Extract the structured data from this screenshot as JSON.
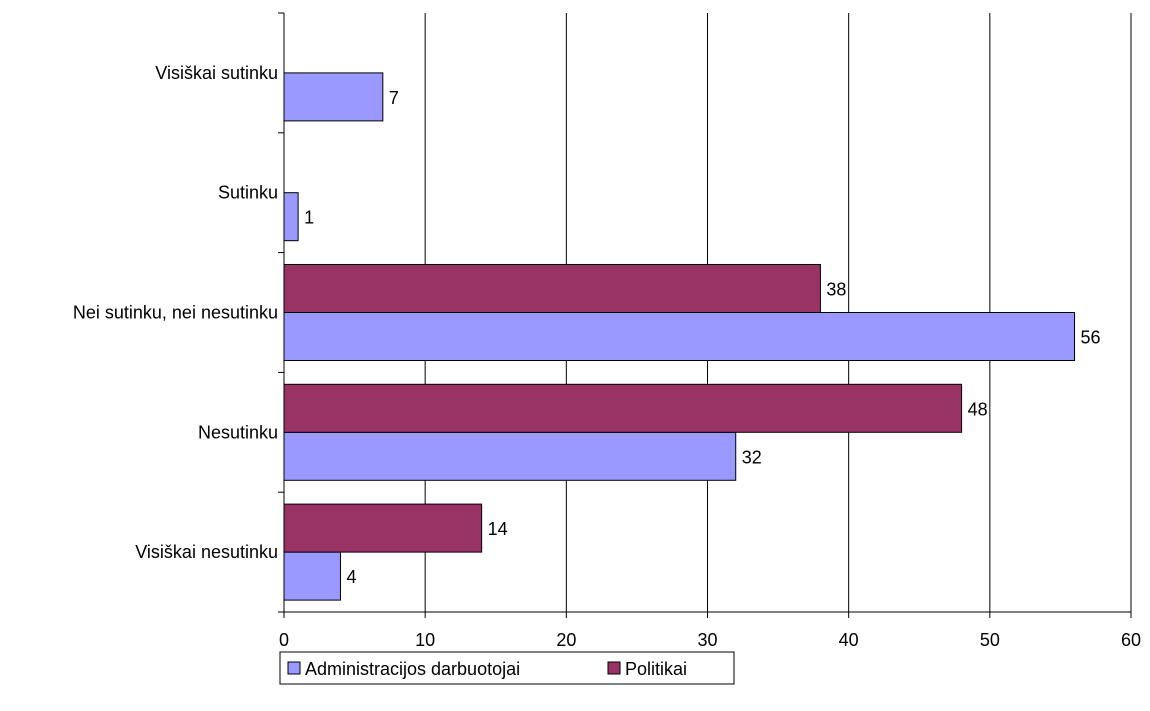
{
  "chart_data": {
    "type": "bar",
    "orientation": "horizontal",
    "categories": [
      "Visiškai sutinku",
      "Sutinku",
      "Nei sutinku, nei nesutinku",
      "Nesutinku",
      "Visiškai nesutinku"
    ],
    "series": [
      {
        "name": "Administracijos darbuotojai",
        "color": "#9999FF",
        "values": [
          7,
          1,
          56,
          32,
          4
        ]
      },
      {
        "name": "Politikai",
        "color": "#993366",
        "values": [
          null,
          null,
          38,
          48,
          14
        ]
      }
    ],
    "xlim": [
      0,
      60
    ],
    "xticks": [
      0,
      10,
      20,
      30,
      40,
      50,
      60
    ],
    "grid": "vertical",
    "legend": "bottom"
  }
}
